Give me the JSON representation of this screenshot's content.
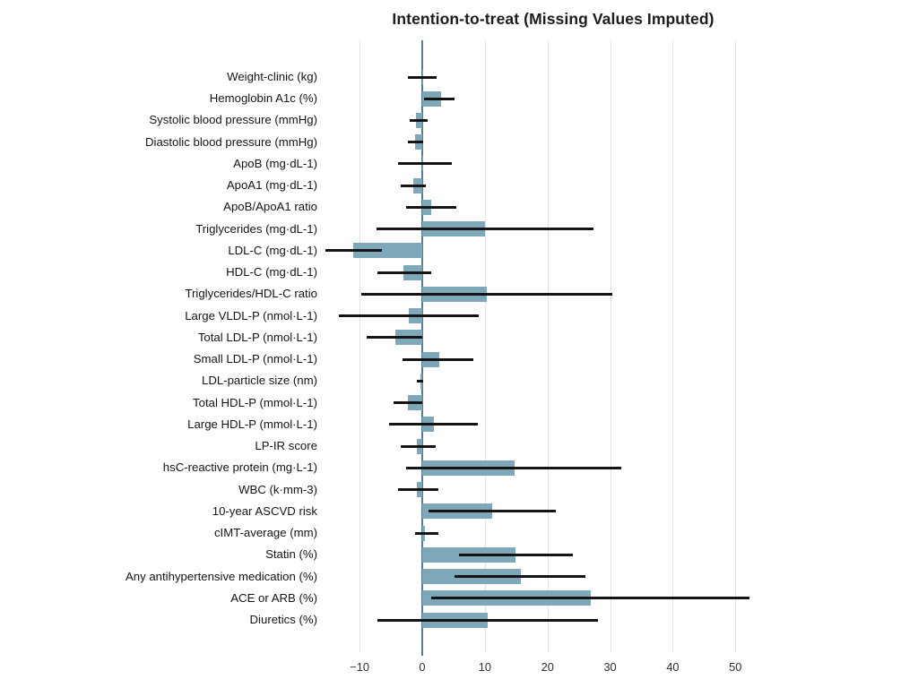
{
  "chart_data": {
    "type": "bar",
    "orientation": "horizontal",
    "title": "Intention-to-treat (Missing Values Imputed)",
    "xlabel": "",
    "ylabel": "",
    "xlim": [
      -15.6,
      57.4
    ],
    "xticks": [
      -10,
      0,
      10,
      20,
      30,
      40,
      50
    ],
    "xtick_labels": [
      "−10",
      "0",
      "10",
      "20",
      "30",
      "40",
      "50"
    ],
    "grid": "vertical-only",
    "legend": "none",
    "categories": [
      "Weight-clinic (kg)",
      "Hemoglobin A1c (%)",
      "Systolic blood pressure (mmHg)",
      "Diastolic blood pressure (mmHg)",
      "ApoB (mg·dL-1)",
      "ApoA1 (mg·dL-1)",
      "ApoB/ApoA1 ratio",
      "Triglycerides (mg·dL-1)",
      "LDL-C (mg·dL-1)",
      "HDL-C (mg·dL-1)",
      "Triglycerides/HDL-C ratio",
      "Large VLDL-P (nmol·L-1)",
      "Total LDL-P (nmol·L-1)",
      "Small LDL-P (nmol·L-1)",
      "LDL-particle size (nm)",
      "Total HDL-P (mmol·L-1)",
      "Large HDL-P (mmol·L-1)",
      "LP-IR score",
      "hsC-reactive protein (mg·L-1)",
      "WBC (k·mm-3)",
      "10-year ASCVD risk",
      "cIMT-average (mm)",
      "Statin (%)",
      "Any antihypertensive medication (%)",
      "ACE or ARB (%)",
      "Diuretics (%)"
    ],
    "values": [
      0.1,
      3.0,
      -1.0,
      -1.1,
      0.2,
      -1.5,
      1.5,
      10.0,
      -11.0,
      -3.0,
      10.3,
      -2.2,
      -4.3,
      2.7,
      -0.3,
      -2.3,
      1.9,
      -0.9,
      14.7,
      -0.8,
      11.1,
      0.5,
      14.9,
      15.7,
      26.9,
      10.5
    ],
    "ci_low": [
      -2.3,
      0.3,
      -2.0,
      -2.3,
      -3.8,
      -3.4,
      -2.6,
      -7.3,
      -15.4,
      -7.1,
      -9.8,
      -13.3,
      -8.9,
      -3.2,
      -0.8,
      -4.6,
      -5.3,
      -3.5,
      -2.6,
      -3.9,
      1.0,
      -1.2,
      5.9,
      5.1,
      1.5,
      -7.2
    ],
    "ci_high": [
      2.3,
      5.1,
      0.8,
      0.1,
      4.7,
      0.6,
      5.5,
      27.4,
      -6.5,
      1.4,
      30.4,
      9.0,
      0.0,
      8.2,
      0.1,
      0.0,
      8.9,
      2.2,
      31.8,
      2.6,
      21.3,
      2.6,
      24.0,
      26.1,
      52.3,
      28.1
    ],
    "colors": {
      "bar_fill": "#7fa7ba",
      "error_bar": "#141414",
      "zero_line": "#567e92",
      "gridline": "#e4e4e4",
      "tick_label": "#2e2e2e",
      "category_label": "#141414",
      "background": "#ffffff"
    }
  }
}
